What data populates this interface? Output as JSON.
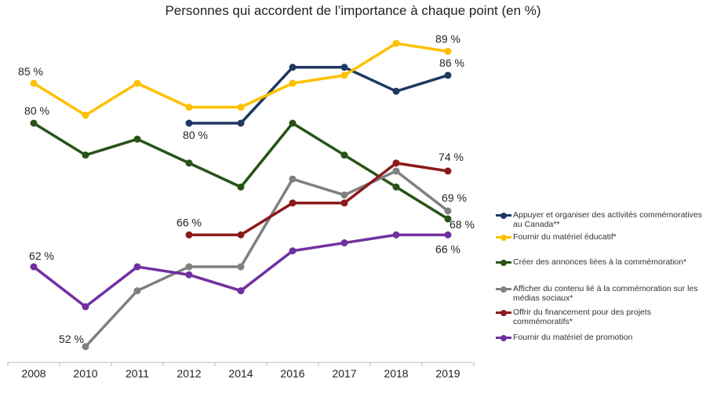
{
  "chart_data": {
    "type": "line",
    "title": "Personnes qui accordent de l’importance à chaque point (en %)",
    "categories": [
      "2008",
      "2010",
      "2011",
      "2012",
      "2014",
      "2016",
      "2017",
      "2018",
      "2019"
    ],
    "ylim": [
      48,
      92
    ],
    "grid": false,
    "legend_position": "right",
    "series": [
      {
        "name": "Appuyer et organiser des activités commémoratives au Canada**",
        "color": "#1f3864",
        "values": [
          null,
          null,
          null,
          80,
          80,
          87,
          87,
          84,
          86
        ]
      },
      {
        "name": "Fournir du matériel éducatif*",
        "color": "#ffc000",
        "values": [
          85,
          81,
          85,
          82,
          82,
          85,
          86,
          90,
          89
        ]
      },
      {
        "name": "Créer des annonces liées à la commémoration*",
        "color": "#275317",
        "values": [
          80,
          76,
          78,
          75,
          72,
          80,
          76,
          72,
          68
        ]
      },
      {
        "name": "Afficher du contenu lié à la commémoration sur les médias sociaux*",
        "color": "#808080",
        "values": [
          null,
          52,
          59,
          62,
          62,
          73,
          71,
          74,
          69
        ]
      },
      {
        "name": "Offrir du financement pour des projets commémoratifs*",
        "color": "#8b1a1a",
        "values": [
          null,
          null,
          null,
          66,
          66,
          70,
          70,
          75,
          74
        ]
      },
      {
        "name": "Fournir du matériel de promotion",
        "color": "#7030a0",
        "values": [
          62,
          57,
          62,
          61,
          59,
          64,
          65,
          66,
          66
        ]
      }
    ],
    "data_labels": [
      {
        "text": "85 %",
        "series": 1,
        "index": 0
      },
      {
        "text": "80 %",
        "series": 2,
        "index": 0
      },
      {
        "text": "62 %",
        "series": 5,
        "index": 0
      },
      {
        "text": "52 %",
        "series": 3,
        "index": 1
      },
      {
        "text": "80 %",
        "series": 0,
        "index": 3
      },
      {
        "text": "66 %",
        "series": 4,
        "index": 3
      },
      {
        "text": "89 %",
        "series": 1,
        "index": 8
      },
      {
        "text": "86 %",
        "series": 0,
        "index": 8
      },
      {
        "text": "74 %",
        "series": 4,
        "index": 8
      },
      {
        "text": "69 %",
        "series": 3,
        "index": 8
      },
      {
        "text": "68 %",
        "series": 2,
        "index": 8
      },
      {
        "text": "66 %",
        "series": 5,
        "index": 8
      }
    ]
  }
}
